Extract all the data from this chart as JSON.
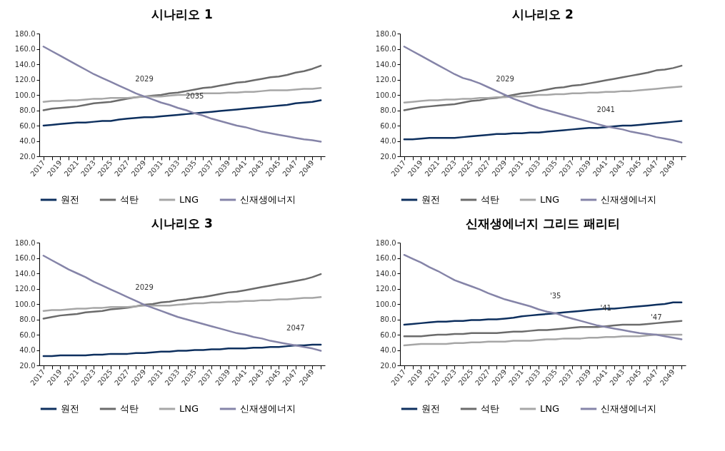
{
  "chart_data": [
    {
      "type": "line",
      "title": "시나리오 1",
      "categories": [
        "2017",
        null,
        "2019",
        null,
        "2021",
        null,
        "2023",
        null,
        "2025",
        null,
        "2027",
        null,
        "2029",
        null,
        "2031",
        null,
        "2033",
        null,
        "2035",
        null,
        "2037",
        null,
        "2039",
        null,
        "2041",
        null,
        "2043",
        null,
        "2045",
        null,
        "2047",
        null,
        "2049",
        null
      ],
      "ylim": [
        20,
        180
      ],
      "yticks": [
        {
          "value": 20,
          "label": "20.0"
        },
        {
          "value": 40,
          "label": "40.0"
        },
        {
          "value": 60,
          "label": "60.0"
        },
        {
          "value": 80,
          "label": "80.0"
        },
        {
          "value": 100,
          "label": "100.0"
        },
        {
          "value": 120,
          "label": "120.0"
        },
        {
          "value": 140,
          "label": "140.0"
        },
        {
          "value": 160,
          "label": "160.0"
        },
        {
          "value": 180,
          "label": "180.0"
        }
      ],
      "legend": "bottom",
      "annotations": [
        {
          "text": "2029",
          "x": "2029",
          "y": 98
        },
        {
          "text": "2035",
          "x": "2035",
          "y": 76
        }
      ],
      "series": [
        {
          "name": "원전",
          "color": "#0d2f5e",
          "values": [
            60,
            61,
            62,
            63,
            64,
            64,
            65,
            66,
            66,
            68,
            69,
            70,
            71,
            71,
            72,
            73,
            74,
            75,
            76,
            77,
            78,
            79,
            80,
            81,
            82,
            83,
            84,
            85,
            86,
            87,
            89,
            90,
            91,
            93
          ]
        },
        {
          "name": "석탄",
          "color": "#6b6b6b",
          "values": [
            80,
            82,
            83,
            84,
            85,
            87,
            89,
            90,
            91,
            93,
            95,
            97,
            98,
            99,
            100,
            102,
            103,
            105,
            107,
            109,
            110,
            112,
            114,
            116,
            117,
            119,
            121,
            123,
            124,
            126,
            129,
            131,
            134,
            138
          ]
        },
        {
          "name": "LNG",
          "color": "#a6a6a6",
          "values": [
            91,
            92,
            92,
            93,
            93,
            94,
            95,
            95,
            96,
            96,
            96,
            97,
            98,
            98,
            98,
            99,
            100,
            100,
            101,
            102,
            102,
            102,
            103,
            103,
            104,
            104,
            105,
            106,
            106,
            106,
            107,
            108,
            108,
            109
          ]
        },
        {
          "name": "신재생에너지",
          "color": "#8584a8",
          "values": [
            163,
            157,
            151,
            145,
            139,
            133,
            127,
            122,
            117,
            112,
            107,
            102,
            98,
            94,
            90,
            87,
            83,
            80,
            76,
            73,
            69,
            66,
            63,
            60,
            58,
            55,
            52,
            50,
            48,
            46,
            44,
            42,
            41,
            39
          ]
        }
      ]
    },
    {
      "type": "line",
      "title": "시나리오 2",
      "categories": [
        "2017",
        null,
        "2019",
        null,
        "2021",
        null,
        "2023",
        null,
        "2025",
        null,
        "2027",
        null,
        "2029",
        null,
        "2031",
        null,
        "2033",
        null,
        "2035",
        null,
        "2037",
        null,
        "2039",
        null,
        "2041",
        null,
        "2043",
        null,
        "2045",
        null,
        "2047",
        null,
        "2049",
        null
      ],
      "ylim": [
        20,
        180
      ],
      "yticks": [
        {
          "value": 20,
          "label": "20.0"
        },
        {
          "value": 40,
          "label": "40.0"
        },
        {
          "value": 60,
          "label": "60.0"
        },
        {
          "value": 80,
          "label": "80.0"
        },
        {
          "value": 100,
          "label": "100.0"
        },
        {
          "value": 120,
          "label": "120.0"
        },
        {
          "value": 140,
          "label": "140.0"
        },
        {
          "value": 160,
          "label": "160.0"
        },
        {
          "value": 180,
          "label": "180.0"
        }
      ],
      "legend": "bottom",
      "annotations": [
        {
          "text": "2029",
          "x": "2029",
          "y": 98
        },
        {
          "text": "2041",
          "x": "2041",
          "y": 58
        }
      ],
      "series": [
        {
          "name": "원전",
          "color": "#0d2f5e",
          "values": [
            42,
            42,
            43,
            44,
            44,
            44,
            44,
            45,
            46,
            47,
            48,
            49,
            49,
            50,
            50,
            51,
            51,
            52,
            53,
            54,
            55,
            56,
            57,
            57,
            58,
            59,
            60,
            60,
            61,
            62,
            63,
            64,
            65,
            66
          ]
        },
        {
          "name": "석탄",
          "color": "#6b6b6b",
          "values": [
            80,
            82,
            84,
            85,
            86,
            87,
            88,
            90,
            92,
            93,
            95,
            96,
            98,
            100,
            102,
            103,
            105,
            107,
            109,
            110,
            112,
            113,
            115,
            117,
            119,
            121,
            123,
            125,
            127,
            129,
            132,
            133,
            135,
            138
          ]
        },
        {
          "name": "LNG",
          "color": "#a6a6a6",
          "values": [
            90,
            91,
            92,
            93,
            93,
            94,
            94,
            95,
            95,
            96,
            96,
            97,
            97,
            98,
            98,
            99,
            100,
            100,
            101,
            101,
            102,
            102,
            103,
            103,
            104,
            104,
            105,
            105,
            106,
            107,
            108,
            109,
            110,
            111
          ]
        },
        {
          "name": "신재생에너지",
          "color": "#8584a8",
          "values": [
            163,
            157,
            151,
            145,
            139,
            133,
            127,
            122,
            119,
            115,
            110,
            105,
            100,
            95,
            91,
            87,
            83,
            80,
            77,
            74,
            71,
            68,
            65,
            62,
            59,
            57,
            55,
            52,
            50,
            48,
            45,
            43,
            41,
            38
          ]
        }
      ]
    },
    {
      "type": "line",
      "title": "시나리오 3",
      "categories": [
        "2017",
        null,
        "2019",
        null,
        "2021",
        null,
        "2023",
        null,
        "2025",
        null,
        "2027",
        null,
        "2029",
        null,
        "2031",
        null,
        "2033",
        null,
        "2035",
        null,
        "2037",
        null,
        "2039",
        null,
        "2041",
        null,
        "2043",
        null,
        "2045",
        null,
        "2047",
        null,
        "2049",
        null
      ],
      "ylim": [
        20,
        180
      ],
      "yticks": [
        {
          "value": 20,
          "label": "20.0"
        },
        {
          "value": 40,
          "label": "40.0"
        },
        {
          "value": 60,
          "label": "60.0"
        },
        {
          "value": 80,
          "label": "80.0"
        },
        {
          "value": 100,
          "label": "100.0"
        },
        {
          "value": 120,
          "label": "120.0"
        },
        {
          "value": 140,
          "label": "140.0"
        },
        {
          "value": 160,
          "label": "160.0"
        },
        {
          "value": 180,
          "label": "180.0"
        }
      ],
      "legend": "bottom",
      "annotations": [
        {
          "text": "2029",
          "x": "2029",
          "y": 99
        },
        {
          "text": "2047",
          "x": "2047",
          "y": 46
        }
      ],
      "series": [
        {
          "name": "원전",
          "color": "#0d2f5e",
          "values": [
            32,
            32,
            33,
            33,
            33,
            33,
            34,
            34,
            35,
            35,
            35,
            36,
            36,
            37,
            38,
            38,
            39,
            39,
            40,
            40,
            41,
            41,
            42,
            42,
            42,
            43,
            43,
            44,
            44,
            45,
            46,
            46,
            47,
            47
          ]
        },
        {
          "name": "석탄",
          "color": "#6b6b6b",
          "values": [
            81,
            83,
            85,
            86,
            87,
            89,
            90,
            91,
            93,
            94,
            95,
            97,
            99,
            100,
            102,
            103,
            105,
            106,
            108,
            109,
            111,
            113,
            115,
            116,
            118,
            120,
            122,
            124,
            126,
            128,
            130,
            132,
            135,
            139
          ]
        },
        {
          "name": "LNG",
          "color": "#a6a6a6",
          "values": [
            91,
            92,
            92,
            93,
            94,
            94,
            95,
            95,
            96,
            96,
            96,
            97,
            98,
            98,
            98,
            98,
            99,
            100,
            101,
            101,
            102,
            102,
            103,
            103,
            104,
            104,
            105,
            105,
            106,
            106,
            107,
            108,
            108,
            109
          ]
        },
        {
          "name": "신재생에너지",
          "color": "#8584a8",
          "values": [
            163,
            157,
            151,
            145,
            140,
            135,
            129,
            124,
            119,
            114,
            109,
            104,
            99,
            95,
            91,
            87,
            83,
            80,
            77,
            74,
            71,
            68,
            65,
            62,
            60,
            57,
            55,
            52,
            50,
            48,
            46,
            44,
            42,
            39
          ]
        }
      ]
    },
    {
      "type": "line",
      "title": "신재생에너지 그리드 패리티",
      "categories": [
        "2017",
        null,
        "2019",
        null,
        "2021",
        null,
        "2023",
        null,
        "2025",
        null,
        "2027",
        null,
        "2029",
        null,
        "2031",
        null,
        "2033",
        null,
        "2035",
        null,
        "2037",
        null,
        "2039",
        null,
        "2041",
        null,
        "2043",
        null,
        "2045",
        null,
        "2047",
        null,
        "2049",
        null
      ],
      "ylim": [
        20,
        180
      ],
      "yticks": [
        {
          "value": 20,
          "label": "20.0"
        },
        {
          "value": 40,
          "label": "40.0"
        },
        {
          "value": 60,
          "label": "60.0"
        },
        {
          "value": 80,
          "label": "80.0"
        },
        {
          "value": 100,
          "label": "100.0"
        },
        {
          "value": 120,
          "label": "120.0"
        },
        {
          "value": 140,
          "label": "140.0"
        },
        {
          "value": 160,
          "label": "160.0"
        },
        {
          "value": 180,
          "label": "180.0"
        }
      ],
      "legend": "bottom",
      "annotations": [
        {
          "text": "'35",
          "x": "2035",
          "y": 88
        },
        {
          "text": "'41",
          "x": "2041",
          "y": 72
        },
        {
          "text": "'47",
          "x": "2047",
          "y": 60
        }
      ],
      "series": [
        {
          "name": "원전",
          "color": "#0d2f5e",
          "values": [
            73,
            74,
            75,
            76,
            77,
            77,
            78,
            78,
            79,
            79,
            80,
            80,
            81,
            82,
            84,
            85,
            86,
            87,
            88,
            89,
            90,
            91,
            92,
            93,
            94,
            94,
            95,
            96,
            97,
            98,
            99,
            100,
            102,
            102
          ]
        },
        {
          "name": "석탄",
          "color": "#6b6b6b",
          "values": [
            58,
            58,
            58,
            59,
            60,
            60,
            61,
            61,
            62,
            62,
            62,
            62,
            63,
            64,
            64,
            65,
            66,
            66,
            67,
            68,
            69,
            70,
            70,
            70,
            71,
            72,
            73,
            73,
            73,
            74,
            75,
            76,
            77,
            78
          ]
        },
        {
          "name": "LNG",
          "color": "#a6a6a6",
          "values": [
            46,
            47,
            48,
            48,
            48,
            48,
            49,
            49,
            50,
            50,
            51,
            51,
            51,
            52,
            52,
            52,
            53,
            54,
            54,
            55,
            55,
            55,
            56,
            56,
            57,
            57,
            58,
            58,
            58,
            59,
            60,
            60,
            60,
            60
          ]
        },
        {
          "name": "신재생에너지",
          "color": "#8584a8",
          "values": [
            164,
            159,
            154,
            148,
            143,
            137,
            131,
            127,
            123,
            119,
            114,
            110,
            106,
            103,
            100,
            97,
            93,
            90,
            88,
            84,
            81,
            78,
            75,
            72,
            70,
            68,
            66,
            64,
            62,
            61,
            60,
            58,
            56,
            54
          ]
        }
      ]
    }
  ]
}
